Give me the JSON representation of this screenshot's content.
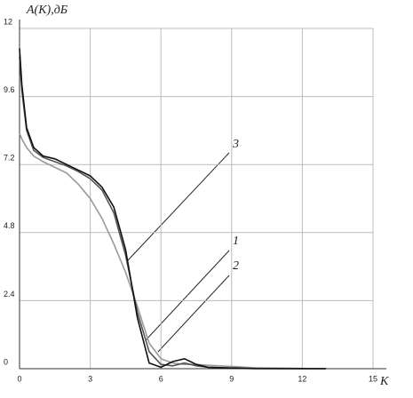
{
  "chart_data": {
    "type": "line",
    "y_label": "A(K),дБ",
    "x_label": "K",
    "x": [
      0,
      0.1,
      0.3,
      0.6,
      1,
      1.5,
      2,
      2.5,
      3,
      3.5,
      4,
      4.5,
      5,
      5.5,
      6,
      6.5,
      7,
      7.5,
      8,
      9,
      10,
      12,
      13
    ],
    "series": [
      {
        "name": "1",
        "color": "#111111",
        "values": [
          11.3,
          10,
          8.5,
          7.8,
          7.5,
          7.4,
          7.2,
          7.0,
          6.8,
          6.4,
          5.7,
          4.2,
          1.8,
          0.2,
          0.05,
          0.25,
          0.35,
          0.15,
          0.05,
          0.02,
          0,
          0,
          0
        ]
      },
      {
        "name": "2",
        "color": "#555555",
        "values": [
          11,
          9.8,
          8.4,
          7.7,
          7.45,
          7.3,
          7.15,
          6.95,
          6.7,
          6.3,
          5.5,
          4.0,
          2.0,
          0.6,
          0.15,
          0.1,
          0.2,
          0.1,
          0.05,
          0.03,
          0.01,
          0,
          0
        ]
      },
      {
        "name": "3",
        "color": "#999999",
        "values": [
          8.3,
          8.1,
          7.8,
          7.5,
          7.3,
          7.1,
          6.9,
          6.5,
          6.0,
          5.3,
          4.4,
          3.4,
          2.2,
          0.9,
          0.35,
          0.2,
          0.15,
          0.15,
          0.12,
          0.08,
          0.03,
          0.01,
          0
        ]
      }
    ],
    "xlim": [
      0,
      15
    ],
    "ylim": [
      0,
      12
    ],
    "xticks": [
      0,
      3,
      6,
      9,
      12,
      15
    ],
    "yticks": [
      0,
      2.4,
      4.8,
      7.2,
      9.6,
      12
    ],
    "grid": true
  }
}
